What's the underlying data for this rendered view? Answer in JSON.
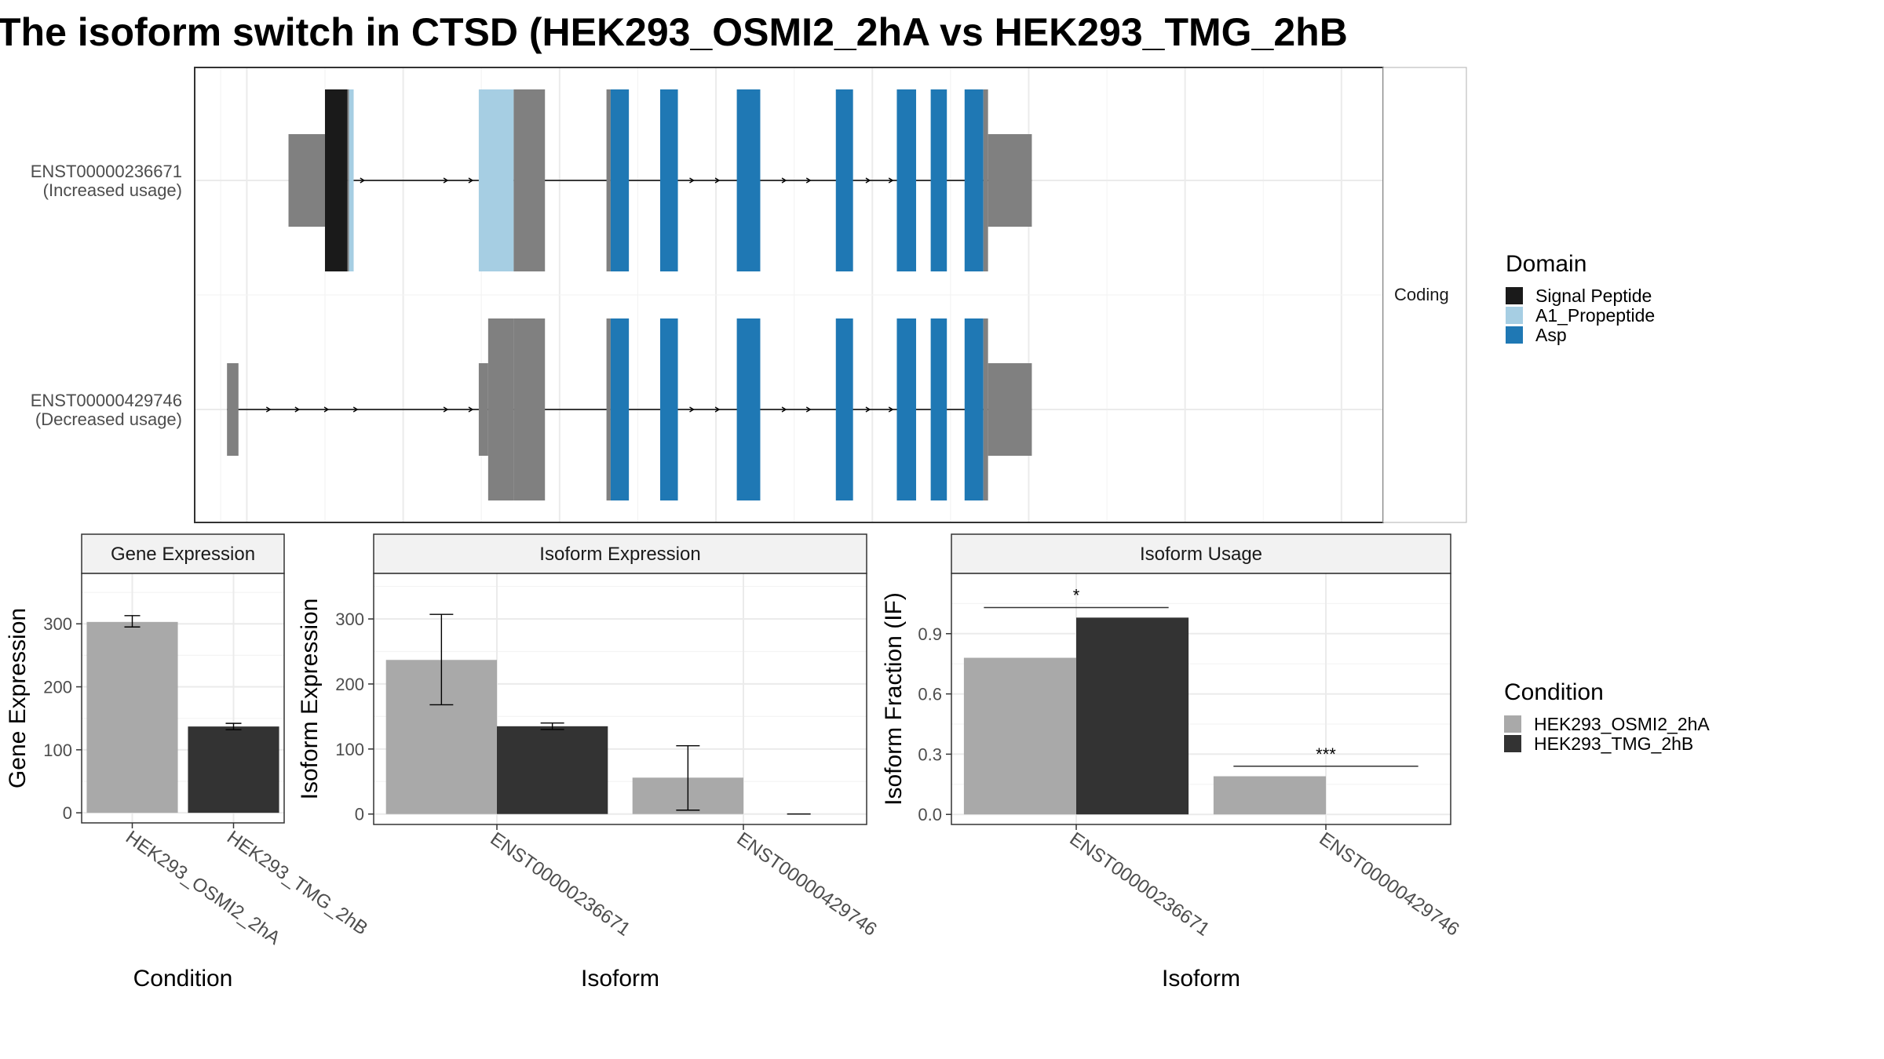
{
  "title": "The isoform switch in CTSD (HEK293_OSMI2_2hA vs HEK293_TMG_2hB",
  "colors": {
    "signal_peptide": "#1a1a1a",
    "a1_propeptide": "#a6cee3",
    "asp": "#1f78b4",
    "utr": "#808080",
    "osmi": "#a9a9a9",
    "tmg": "#333333"
  },
  "chart_data": [
    {
      "type": "gene-structure",
      "facet_label": "Coding",
      "x_range": [
        0,
        2280
      ],
      "x_breaks": [
        100,
        400,
        700,
        1000,
        1300,
        1600,
        1900,
        2200
      ],
      "transcripts": [
        {
          "id": "ENST00000236671",
          "usage": "(Increased usage)",
          "segments": [
            {
              "start": 180,
              "end": 250,
              "kind": "utr"
            },
            {
              "start": 250,
              "end": 293,
              "kind": "cds",
              "domain": "signal_peptide"
            },
            {
              "start": 293,
              "end": 296,
              "kind": "cds"
            },
            {
              "start": 296,
              "end": 305,
              "kind": "cds",
              "domain": "a1_propeptide"
            },
            {
              "start": 545,
              "end": 612,
              "kind": "cds",
              "domain": "a1_propeptide"
            },
            {
              "start": 612,
              "end": 672,
              "kind": "cds"
            },
            {
              "start": 790,
              "end": 798,
              "kind": "cds"
            },
            {
              "start": 798,
              "end": 833,
              "kind": "cds",
              "domain": "asp"
            },
            {
              "start": 893,
              "end": 927,
              "kind": "cds",
              "domain": "asp"
            },
            {
              "start": 1040,
              "end": 1085,
              "kind": "cds",
              "domain": "asp"
            },
            {
              "start": 1230,
              "end": 1263,
              "kind": "cds",
              "domain": "asp"
            },
            {
              "start": 1347,
              "end": 1384,
              "kind": "cds",
              "domain": "asp"
            },
            {
              "start": 1412,
              "end": 1443,
              "kind": "cds",
              "domain": "asp"
            },
            {
              "start": 1477,
              "end": 1513,
              "kind": "cds",
              "domain": "asp"
            },
            {
              "start": 1513,
              "end": 1522,
              "kind": "cds"
            },
            {
              "start": 1522,
              "end": 1606,
              "kind": "utr"
            }
          ],
          "arrows": [
            275,
            322,
            482,
            530,
            954,
            1003,
            1131,
            1178,
            1292,
            1336
          ]
        },
        {
          "id": "ENST00000429746",
          "usage": "(Decreased usage)",
          "segments": [
            {
              "start": 62,
              "end": 84,
              "kind": "utr"
            },
            {
              "start": 545,
              "end": 563,
              "kind": "utr"
            },
            {
              "start": 563,
              "end": 612,
              "kind": "cds"
            },
            {
              "start": 612,
              "end": 672,
              "kind": "cds"
            },
            {
              "start": 790,
              "end": 798,
              "kind": "cds"
            },
            {
              "start": 798,
              "end": 833,
              "kind": "cds",
              "domain": "asp"
            },
            {
              "start": 893,
              "end": 927,
              "kind": "cds",
              "domain": "asp"
            },
            {
              "start": 1040,
              "end": 1085,
              "kind": "cds",
              "domain": "asp"
            },
            {
              "start": 1230,
              "end": 1263,
              "kind": "cds",
              "domain": "asp"
            },
            {
              "start": 1347,
              "end": 1384,
              "kind": "cds",
              "domain": "asp"
            },
            {
              "start": 1412,
              "end": 1443,
              "kind": "cds",
              "domain": "asp"
            },
            {
              "start": 1477,
              "end": 1513,
              "kind": "cds",
              "domain": "asp"
            },
            {
              "start": 1513,
              "end": 1522,
              "kind": "cds"
            },
            {
              "start": 1522,
              "end": 1606,
              "kind": "utr"
            }
          ],
          "arrows": [
            142,
            197,
            253,
            309,
            482,
            530,
            954,
            1003,
            1131,
            1178,
            1292,
            1336
          ]
        }
      ],
      "legend": {
        "title": "Domain",
        "entries": [
          {
            "name": "Signal Peptide",
            "color": "#1a1a1a"
          },
          {
            "name": "A1_Propeptide",
            "color": "#a6cee3"
          },
          {
            "name": "Asp",
            "color": "#1f78b4"
          }
        ]
      }
    },
    {
      "type": "bar",
      "title": "Gene Expression",
      "xlabel": "Condition",
      "ylabel": "Gene Expression",
      "categories": [
        "HEK293_OSMI2_2hA",
        "HEK293_TMG_2hB"
      ],
      "values": [
        303,
        137
      ],
      "error": [
        [
          295,
          313
        ],
        [
          132,
          142
        ]
      ],
      "yticks": [
        0,
        100,
        200,
        300
      ],
      "ylim": [
        -16,
        380
      ]
    },
    {
      "type": "bar",
      "title": "Isoform Expression",
      "xlabel": "Isoform",
      "ylabel": "Isoform Expression",
      "categories": [
        "ENST00000236671",
        "ENST00000429746"
      ],
      "series": [
        {
          "name": "HEK293_OSMI2_2hA",
          "values": [
            237,
            56
          ],
          "error": [
            [
              168,
              307
            ],
            [
              6,
              105
            ]
          ]
        },
        {
          "name": "HEK293_TMG_2hB",
          "values": [
            135,
            0
          ],
          "error": [
            [
              130,
              140
            ],
            [
              0,
              0
            ]
          ]
        }
      ],
      "yticks": [
        0,
        100,
        200,
        300
      ],
      "ylim": [
        -16,
        370
      ]
    },
    {
      "type": "bar",
      "title": "Isoform Usage",
      "xlabel": "Isoform",
      "ylabel": "Isoform Fraction (IF)",
      "categories": [
        "ENST00000236671",
        "ENST00000429746"
      ],
      "series": [
        {
          "name": "HEK293_OSMI2_2hA",
          "values": [
            0.78,
            0.19
          ]
        },
        {
          "name": "HEK293_TMG_2hB",
          "values": [
            0.98,
            0.0
          ]
        }
      ],
      "yticks": [
        0.0,
        0.3,
        0.6,
        0.9
      ],
      "ytick_labels": [
        "0.0",
        "0.3",
        "0.6",
        "0.9"
      ],
      "ylim": [
        -0.05,
        1.2
      ],
      "significance": [
        {
          "category": 0,
          "label": "*",
          "y": 1.03
        },
        {
          "category": 1,
          "label": "***",
          "y": 0.24
        }
      ]
    }
  ],
  "condition_legend": {
    "title": "Condition",
    "entries": [
      {
        "name": "HEK293_OSMI2_2hA",
        "color": "#a9a9a9"
      },
      {
        "name": "HEK293_TMG_2hB",
        "color": "#333333"
      }
    ]
  }
}
